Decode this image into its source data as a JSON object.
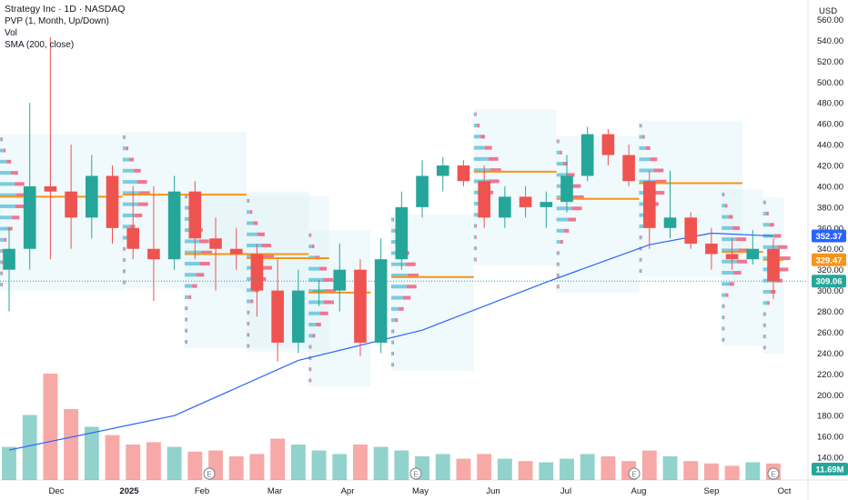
{
  "header": {
    "title": "Strategy Inc · 1D · NASDAQ",
    "indicators": [
      "PVP (1, Month, Up/Down)",
      "Vol",
      "SMA (200, close)"
    ],
    "currency": "USD"
  },
  "colors": {
    "up": "#26a69a",
    "down": "#ef5350",
    "sma": "#2962ff",
    "poc": "#f7931a",
    "profile_up": "#5dc1d8",
    "profile_down": "#f15476",
    "profile_bg": "#e3f4f8"
  },
  "chart_data": {
    "type": "candlestick",
    "y_axis": {
      "min": 120,
      "max": 570,
      "ticks": [
        140,
        160,
        180,
        200,
        220,
        240,
        260,
        280,
        300,
        320,
        340,
        360,
        380,
        400,
        420,
        440,
        460,
        480,
        500,
        520,
        540,
        560
      ]
    },
    "x_labels": [
      "Dec",
      "2025",
      "Feb",
      "Mar",
      "Apr",
      "May",
      "Jun",
      "Jul",
      "Aug",
      "Sep",
      "Oct"
    ],
    "price_badges": [
      {
        "label": "352.37",
        "value": 352.37,
        "color": "#2962ff"
      },
      {
        "label": "329.47",
        "value": 329.47,
        "color": "#f7931a"
      },
      {
        "label": "309.06",
        "value": 309.06,
        "color": "#26a69a"
      }
    ],
    "volume_badge": {
      "label": "11.69M",
      "color": "#26a69a"
    },
    "earnings_markers": [
      "E",
      "E",
      "E",
      "E"
    ],
    "candles_weekly": [
      {
        "o": 320,
        "h": 360,
        "l": 280,
        "c": 340
      },
      {
        "o": 340,
        "h": 480,
        "l": 320,
        "c": 400
      },
      {
        "o": 400,
        "h": 543,
        "l": 330,
        "c": 395
      },
      {
        "o": 395,
        "h": 440,
        "l": 340,
        "c": 370
      },
      {
        "o": 370,
        "h": 430,
        "l": 350,
        "c": 410
      },
      {
        "o": 410,
        "h": 420,
        "l": 345,
        "c": 360
      },
      {
        "o": 360,
        "h": 400,
        "l": 330,
        "c": 340
      },
      {
        "o": 340,
        "h": 400,
        "l": 290,
        "c": 330
      },
      {
        "o": 330,
        "h": 410,
        "l": 320,
        "c": 395
      },
      {
        "o": 395,
        "h": 405,
        "l": 330,
        "c": 350
      },
      {
        "o": 350,
        "h": 370,
        "l": 300,
        "c": 340
      },
      {
        "o": 340,
        "h": 360,
        "l": 320,
        "c": 335
      },
      {
        "o": 335,
        "h": 345,
        "l": 275,
        "c": 300
      },
      {
        "o": 300,
        "h": 330,
        "l": 232,
        "c": 250
      },
      {
        "o": 250,
        "h": 320,
        "l": 240,
        "c": 300
      },
      {
        "o": 300,
        "h": 310,
        "l": 285,
        "c": 300
      },
      {
        "o": 300,
        "h": 345,
        "l": 280,
        "c": 320
      },
      {
        "o": 320,
        "h": 330,
        "l": 237,
        "c": 250
      },
      {
        "o": 250,
        "h": 350,
        "l": 240,
        "c": 330
      },
      {
        "o": 330,
        "h": 395,
        "l": 320,
        "c": 380
      },
      {
        "o": 380,
        "h": 425,
        "l": 370,
        "c": 410
      },
      {
        "o": 410,
        "h": 428,
        "l": 395,
        "c": 420
      },
      {
        "o": 420,
        "h": 425,
        "l": 400,
        "c": 405
      },
      {
        "o": 405,
        "h": 420,
        "l": 360,
        "c": 370
      },
      {
        "o": 370,
        "h": 400,
        "l": 360,
        "c": 390
      },
      {
        "o": 390,
        "h": 400,
        "l": 370,
        "c": 380
      },
      {
        "o": 380,
        "h": 395,
        "l": 360,
        "c": 385
      },
      {
        "o": 385,
        "h": 430,
        "l": 375,
        "c": 410
      },
      {
        "o": 410,
        "h": 457,
        "l": 405,
        "c": 450
      },
      {
        "o": 450,
        "h": 455,
        "l": 420,
        "c": 430
      },
      {
        "o": 430,
        "h": 440,
        "l": 400,
        "c": 405
      },
      {
        "o": 405,
        "h": 415,
        "l": 340,
        "c": 360
      },
      {
        "o": 360,
        "h": 415,
        "l": 350,
        "c": 370
      },
      {
        "o": 370,
        "h": 375,
        "l": 340,
        "c": 345
      },
      {
        "o": 345,
        "h": 360,
        "l": 320,
        "c": 335
      },
      {
        "o": 335,
        "h": 350,
        "l": 320,
        "c": 330
      },
      {
        "o": 330,
        "h": 358,
        "l": 325,
        "c": 340
      },
      {
        "o": 340,
        "h": 350,
        "l": 292,
        "c": 309
      }
    ],
    "volume_weekly": [
      28,
      55,
      90,
      60,
      45,
      38,
      30,
      32,
      28,
      24,
      25,
      20,
      22,
      35,
      30,
      25,
      22,
      30,
      28,
      25,
      20,
      22,
      18,
      22,
      18,
      16,
      15,
      18,
      22,
      20,
      16,
      25,
      20,
      16,
      14,
      12,
      15,
      14
    ],
    "sma200": [
      {
        "x": 0,
        "y": 147
      },
      {
        "x": 8,
        "y": 180
      },
      {
        "x": 14,
        "y": 233
      },
      {
        "x": 20,
        "y": 262
      },
      {
        "x": 26,
        "y": 308
      },
      {
        "x": 31,
        "y": 344
      },
      {
        "x": 34,
        "y": 355
      },
      {
        "x": 37,
        "y": 352.37
      }
    ],
    "monthly_poc": [
      {
        "from": 0,
        "to": 6,
        "value": 390
      },
      {
        "from": 6,
        "to": 12,
        "value": 392
      },
      {
        "from": 9,
        "to": 15,
        "value": 335
      },
      {
        "from": 12,
        "to": 16,
        "value": 331
      },
      {
        "from": 15,
        "to": 18,
        "value": 298
      },
      {
        "from": 19,
        "to": 23,
        "value": 313
      },
      {
        "from": 23,
        "to": 27,
        "value": 414
      },
      {
        "from": 27,
        "to": 31,
        "value": 388
      },
      {
        "from": 31,
        "to": 36,
        "value": 403
      },
      {
        "from": 35,
        "to": 37,
        "value": 337
      },
      {
        "from": 37,
        "to": 38,
        "value": 329.47
      }
    ]
  }
}
